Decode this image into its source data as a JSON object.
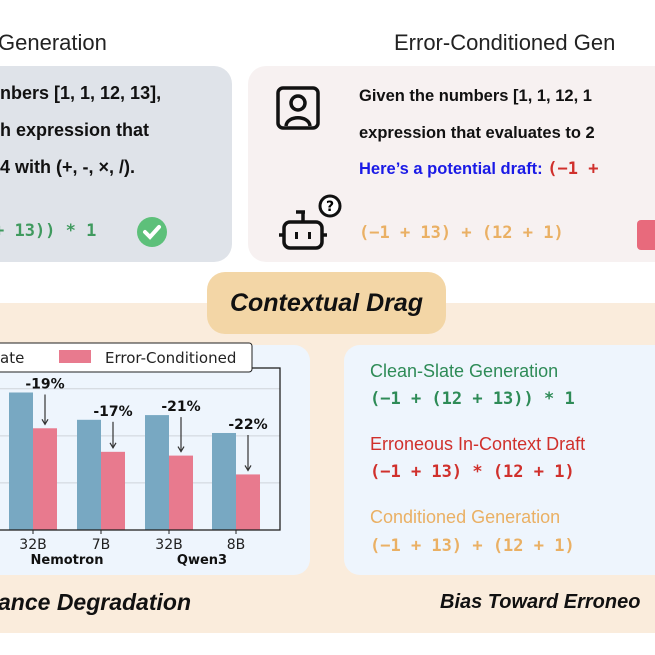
{
  "top": {
    "left_title": "Generation",
    "right_title": "Error-Conditioned Gen",
    "left_card": {
      "lines": [
        "nbers [1, 1, 12, 13],",
        "h expression that",
        "4 with (+, -, ×, /)."
      ],
      "answer": "+ 13)) * 1",
      "status_icon": "check-circle-icon",
      "bg_color": "#dfe3e9"
    },
    "right_card": {
      "lines": [
        "Given the numbers [1, 1, 12, 1",
        "expression that evaluates to 2"
      ],
      "draft_label": "Here’s a potential draft:",
      "draft_fragment": "(−1 +",
      "answer": "(−1 + 13) + (12 + 1)",
      "status_icon": "x-box-icon",
      "user_icon": "user-portrait-icon",
      "bot_icon": "robot-question-icon",
      "bg_color": "#f7f1f1"
    }
  },
  "center": {
    "label": "Contextual Drag"
  },
  "left_panel": {
    "title": "ance Degradation"
  },
  "right_panel": {
    "title": "Bias Toward Erroneo",
    "items": [
      {
        "label": "Clean-Slate Generation",
        "expr": "(−1 + (12 + 13)) * 1",
        "color": "#2e8b57"
      },
      {
        "label": "Erroneous In-Context Draft",
        "expr": "(−1 + 13) * (12 + 1)",
        "color": "#d0302c"
      },
      {
        "label": "Conditioned Generation",
        "expr": "(−1 + 13) + (12 + 1)",
        "color": "#eab064"
      }
    ]
  },
  "chart_data": {
    "type": "bar",
    "categories": [
      "32B",
      "7B",
      "32B",
      "8B"
    ],
    "groups": [
      {
        "name": "Nemotron"
      },
      {
        "name": "Qwen3"
      }
    ],
    "legend_fragment": "ate",
    "series": [
      {
        "name": "Error-Conditioned",
        "color": "#e87a8e",
        "values": [
          54,
          41.5,
          39.5,
          29.5
        ]
      },
      {
        "color": "#78a8c2",
        "values": [
          73,
          58.5,
          61,
          51.5
        ]
      }
    ],
    "annotations": [
      "-19%",
      "-17%",
      "-21%",
      "-22%"
    ],
    "ylim": [
      0,
      86
    ],
    "gridlines": [
      25,
      50,
      75
    ],
    "grid": true,
    "legend_placement": "top"
  }
}
